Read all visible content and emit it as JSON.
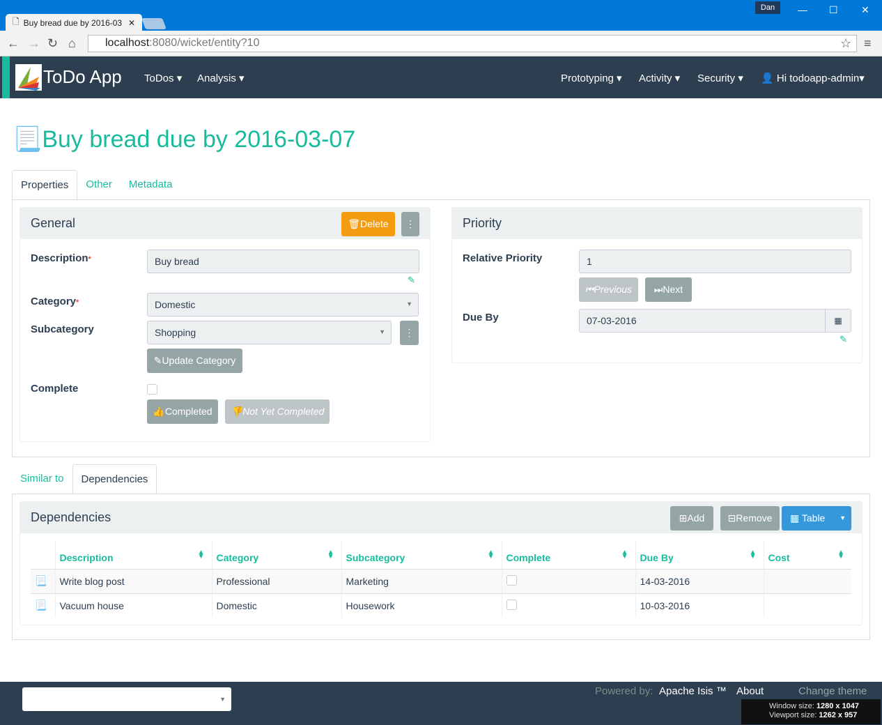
{
  "browser": {
    "tab_title": "Buy bread due by 2016-03",
    "user": "Dan",
    "url_host": "localhost",
    "url_rest": ":8080/wicket/entity?10"
  },
  "navbar": {
    "brand": "ToDo App",
    "left": [
      "ToDos",
      "Analysis"
    ],
    "right": [
      "Prototyping",
      "Activity",
      "Security"
    ],
    "user": "Hi todoapp-admin"
  },
  "page": {
    "title": "Buy bread due by 2016-03-07"
  },
  "tabs": [
    "Properties",
    "Other",
    "Metadata"
  ],
  "general": {
    "title": "General",
    "delete": "Delete",
    "description_label": "Description",
    "description": "Buy bread",
    "category_label": "Category",
    "category": "Domestic",
    "subcategory_label": "Subcategory",
    "subcategory": "Shopping",
    "update_category": "Update Category",
    "complete_label": "Complete",
    "completed": "Completed",
    "not_yet_completed": "Not Yet Completed",
    "required_mark": "*"
  },
  "priority": {
    "title": "Priority",
    "relative_priority_label": "Relative Priority",
    "relative_priority": "1",
    "previous": "Previous",
    "next": "Next",
    "due_by_label": "Due By",
    "due_by": "07-03-2016"
  },
  "lower_tabs": [
    "Similar to",
    "Dependencies"
  ],
  "dependencies": {
    "title": "Dependencies",
    "add": "Add",
    "remove": "Remove",
    "table": "Table",
    "columns": [
      "Description",
      "Category",
      "Subcategory",
      "Complete",
      "Due By",
      "Cost"
    ],
    "rows": [
      {
        "description": "Write blog post",
        "category": "Professional",
        "subcategory": "Marketing",
        "complete": false,
        "due_by": "14-03-2016",
        "cost": ""
      },
      {
        "description": "Vacuum house",
        "category": "Domestic",
        "subcategory": "Housework",
        "complete": false,
        "due_by": "10-03-2016",
        "cost": ""
      }
    ]
  },
  "footer": {
    "powered_by": "Powered by:",
    "apache_isis": "Apache Isis ™",
    "about": "About",
    "change_theme": "Change theme"
  },
  "overlay": {
    "window_label": "Window size:",
    "window_size": "1280 x 1047",
    "viewport_label": "Viewport size:",
    "viewport_size": "1262 x 957"
  },
  "colors": {
    "accent": "#18bc9c",
    "navbar": "#2c3e50",
    "delete": "#f39c12",
    "table_button": "#3498db"
  }
}
